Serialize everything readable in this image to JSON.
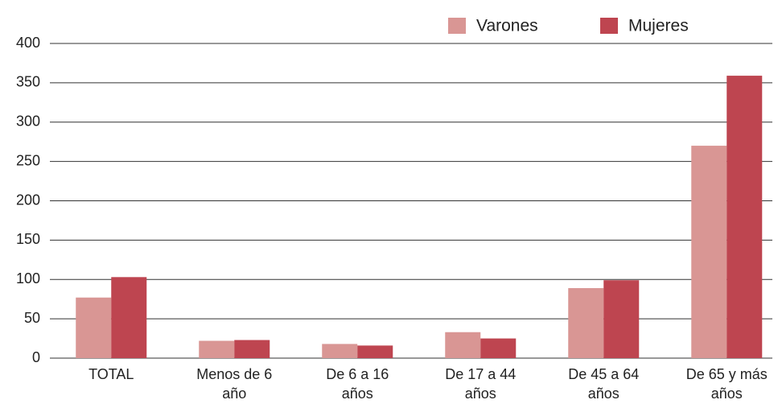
{
  "chart_data": {
    "type": "bar",
    "categories": [
      "TOTAL",
      "Menos de 6\naño",
      "De 6 a 16\naños",
      "De 17 a 44\naños",
      "De 45 a 64\naños",
      "De 65 y más\naños"
    ],
    "series": [
      {
        "name": "Varones",
        "color": "#d99694",
        "values": [
          77,
          22,
          18,
          33,
          89,
          270
        ]
      },
      {
        "name": "Mujeres",
        "color": "#be4550",
        "values": [
          103,
          23,
          16,
          25,
          99,
          359
        ]
      }
    ],
    "ylim": [
      0,
      400
    ],
    "yticks": [
      0,
      50,
      100,
      150,
      200,
      250,
      300,
      350,
      400
    ],
    "grid": true,
    "legend": "top"
  }
}
